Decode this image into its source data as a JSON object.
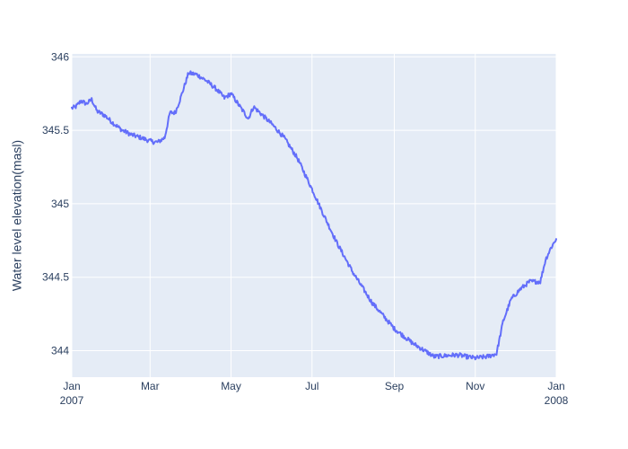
{
  "chart_data": {
    "type": "line",
    "title": "",
    "xlabel": "",
    "ylabel": "Water level elevation(masl)",
    "colors": {
      "background": "#ffffff",
      "plot_background": "#e5ecf6",
      "gridline": "#ffffff",
      "line": "#636efa",
      "text": "#2a3f5f"
    },
    "grid": true,
    "legend": "none",
    "xlim": [
      "2007-01-01",
      "2008-01-01"
    ],
    "ylim": [
      343.82,
      346.02
    ],
    "x_ticks": [
      {
        "value": "2007-01-01",
        "label": "Jan",
        "sublabel": "2007"
      },
      {
        "value": "2007-03-01",
        "label": "Mar",
        "sublabel": ""
      },
      {
        "value": "2007-05-01",
        "label": "May",
        "sublabel": ""
      },
      {
        "value": "2007-07-01",
        "label": "Jul",
        "sublabel": ""
      },
      {
        "value": "2007-09-01",
        "label": "Sep",
        "sublabel": ""
      },
      {
        "value": "2007-11-01",
        "label": "Nov",
        "sublabel": ""
      },
      {
        "value": "2008-01-01",
        "label": "Jan",
        "sublabel": "2008"
      }
    ],
    "y_ticks": [
      {
        "value": 344,
        "label": "344"
      },
      {
        "value": 344.5,
        "label": "344.5"
      },
      {
        "value": 345,
        "label": "345"
      },
      {
        "value": 345.5,
        "label": "345.5"
      },
      {
        "value": 346,
        "label": "346"
      }
    ],
    "series": [
      {
        "x": [
          "2007-01-01",
          "2007-01-04",
          "2007-01-08",
          "2007-01-12",
          "2007-01-16",
          "2007-01-20",
          "2007-01-26",
          "2007-02-01",
          "2007-02-08",
          "2007-02-15",
          "2007-02-22",
          "2007-02-28",
          "2007-03-04",
          "2007-03-07",
          "2007-03-12",
          "2007-03-16",
          "2007-03-20",
          "2007-03-24",
          "2007-03-30",
          "2007-04-05",
          "2007-04-12",
          "2007-04-20",
          "2007-04-26",
          "2007-05-01",
          "2007-05-07",
          "2007-05-14",
          "2007-05-18",
          "2007-05-25",
          "2007-06-01",
          "2007-06-10",
          "2007-06-20",
          "2007-07-01",
          "2007-07-10",
          "2007-07-20",
          "2007-08-01",
          "2007-08-15",
          "2007-09-01",
          "2007-09-15",
          "2007-10-01",
          "2007-10-15",
          "2007-10-20",
          "2007-10-25",
          "2007-11-01",
          "2007-11-10",
          "2007-11-17",
          "2007-11-22",
          "2007-11-28",
          "2007-12-05",
          "2007-12-12",
          "2007-12-20",
          "2007-12-24",
          "2007-12-28",
          "2008-01-01"
        ],
        "y": [
          345.65,
          345.66,
          345.7,
          345.68,
          345.71,
          345.63,
          345.6,
          345.55,
          345.5,
          345.47,
          345.45,
          345.43,
          345.42,
          345.42,
          345.45,
          345.62,
          345.62,
          345.72,
          345.89,
          345.88,
          345.84,
          345.78,
          345.72,
          345.75,
          345.67,
          345.58,
          345.66,
          345.6,
          345.54,
          345.45,
          345.31,
          345.1,
          344.92,
          344.73,
          344.53,
          344.33,
          344.15,
          344.05,
          343.96,
          343.97,
          343.97,
          343.96,
          343.95,
          343.96,
          343.98,
          344.2,
          344.35,
          344.42,
          344.47,
          344.47,
          344.62,
          344.7,
          344.76
        ]
      }
    ]
  }
}
